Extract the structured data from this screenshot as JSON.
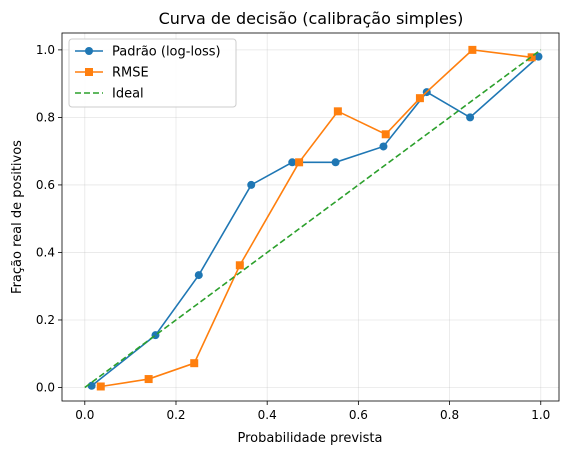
{
  "chart_data": {
    "type": "line",
    "title": "Curva de decisão (calibração simples)",
    "xlabel": "Probabilidade prevista",
    "ylabel": "Fração real de positivos",
    "xlim": [
      -0.05,
      1.04
    ],
    "ylim": [
      -0.04,
      1.05
    ],
    "x_ticks": [
      0.0,
      0.2,
      0.4,
      0.6,
      0.8,
      1.0
    ],
    "x_tick_labels": [
      "0.0",
      "0.2",
      "0.4",
      "0.6",
      "0.8",
      "1.0"
    ],
    "y_ticks": [
      0.0,
      0.2,
      0.4,
      0.6,
      0.8,
      1.0
    ],
    "y_tick_labels": [
      "0.0",
      "0.2",
      "0.4",
      "0.6",
      "0.8",
      "1.0"
    ],
    "grid": true,
    "legend_position": "top-left",
    "series": [
      {
        "name": "Padrão (log-loss)",
        "color": "#1f77b4",
        "marker": "circle",
        "linestyle": "solid",
        "x": [
          0.015,
          0.155,
          0.25,
          0.365,
          0.455,
          0.55,
          0.655,
          0.75,
          0.845,
          0.995
        ],
        "y": [
          0.005,
          0.155,
          0.333,
          0.6,
          0.667,
          0.667,
          0.714,
          0.875,
          0.8,
          0.98
        ]
      },
      {
        "name": "RMSE",
        "color": "#ff7f0e",
        "marker": "square",
        "linestyle": "solid",
        "x": [
          0.035,
          0.14,
          0.24,
          0.34,
          0.47,
          0.555,
          0.66,
          0.735,
          0.85,
          0.98
        ],
        "y": [
          0.003,
          0.025,
          0.072,
          0.362,
          0.667,
          0.818,
          0.75,
          0.857,
          1.0,
          0.978
        ]
      },
      {
        "name": "Ideal",
        "color": "#2ca02c",
        "marker": "none",
        "linestyle": "dashed",
        "x": [
          0.0,
          1.0
        ],
        "y": [
          0.0,
          1.0
        ]
      }
    ]
  }
}
